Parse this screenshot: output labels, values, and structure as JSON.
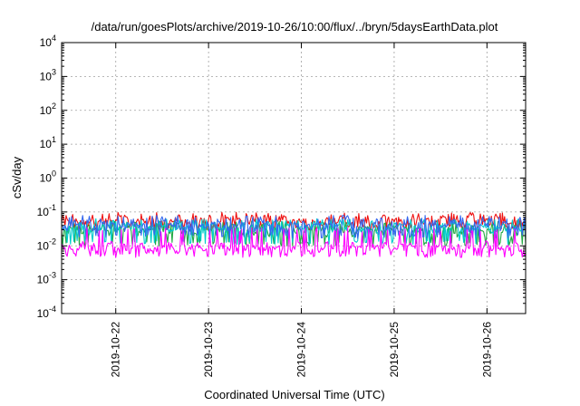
{
  "chart_data": {
    "type": "line",
    "title": "/data/run/goesPlots/archive/2019-10-26/10:00/flux/../bryn/5daysEarthData.plot",
    "xlabel": "Coordinated Universal Time (UTC)",
    "ylabel": "cSv/day",
    "yscale": "log",
    "ylim": [
      0.0001,
      10000
    ],
    "xlim": [
      "2019-10-21T10:00",
      "2019-10-26T10:00"
    ],
    "yticks": [
      {
        "value": 0.0001,
        "base": "10",
        "exp": "-4"
      },
      {
        "value": 0.001,
        "base": "10",
        "exp": "-3"
      },
      {
        "value": 0.01,
        "base": "10",
        "exp": "-2"
      },
      {
        "value": 0.1,
        "base": "10",
        "exp": "-1"
      },
      {
        "value": 1,
        "base": "10",
        "exp": "0"
      },
      {
        "value": 10,
        "base": "10",
        "exp": "1"
      },
      {
        "value": 100,
        "base": "10",
        "exp": "2"
      },
      {
        "value": 1000,
        "base": "10",
        "exp": "3"
      },
      {
        "value": 10000,
        "base": "10",
        "exp": "4"
      }
    ],
    "xticks": [
      "2019-10-22",
      "2019-10-23",
      "2019-10-24",
      "2019-10-25",
      "2019-10-26"
    ],
    "grid": true,
    "series": [
      {
        "color": "#ee1111",
        "base": 0.055,
        "low": 0.032,
        "high": 0.085
      },
      {
        "color": "#22aa44",
        "base": 0.03,
        "low": 0.011,
        "high": 0.048
      },
      {
        "color": "#00cccc",
        "base": 0.035,
        "low": 0.012,
        "high": 0.055
      },
      {
        "color": "#3366ee",
        "base": 0.042,
        "low": 0.018,
        "high": 0.07
      },
      {
        "color": "#ff00ff",
        "base": 0.009,
        "low": 0.005,
        "high": 0.03
      }
    ]
  }
}
